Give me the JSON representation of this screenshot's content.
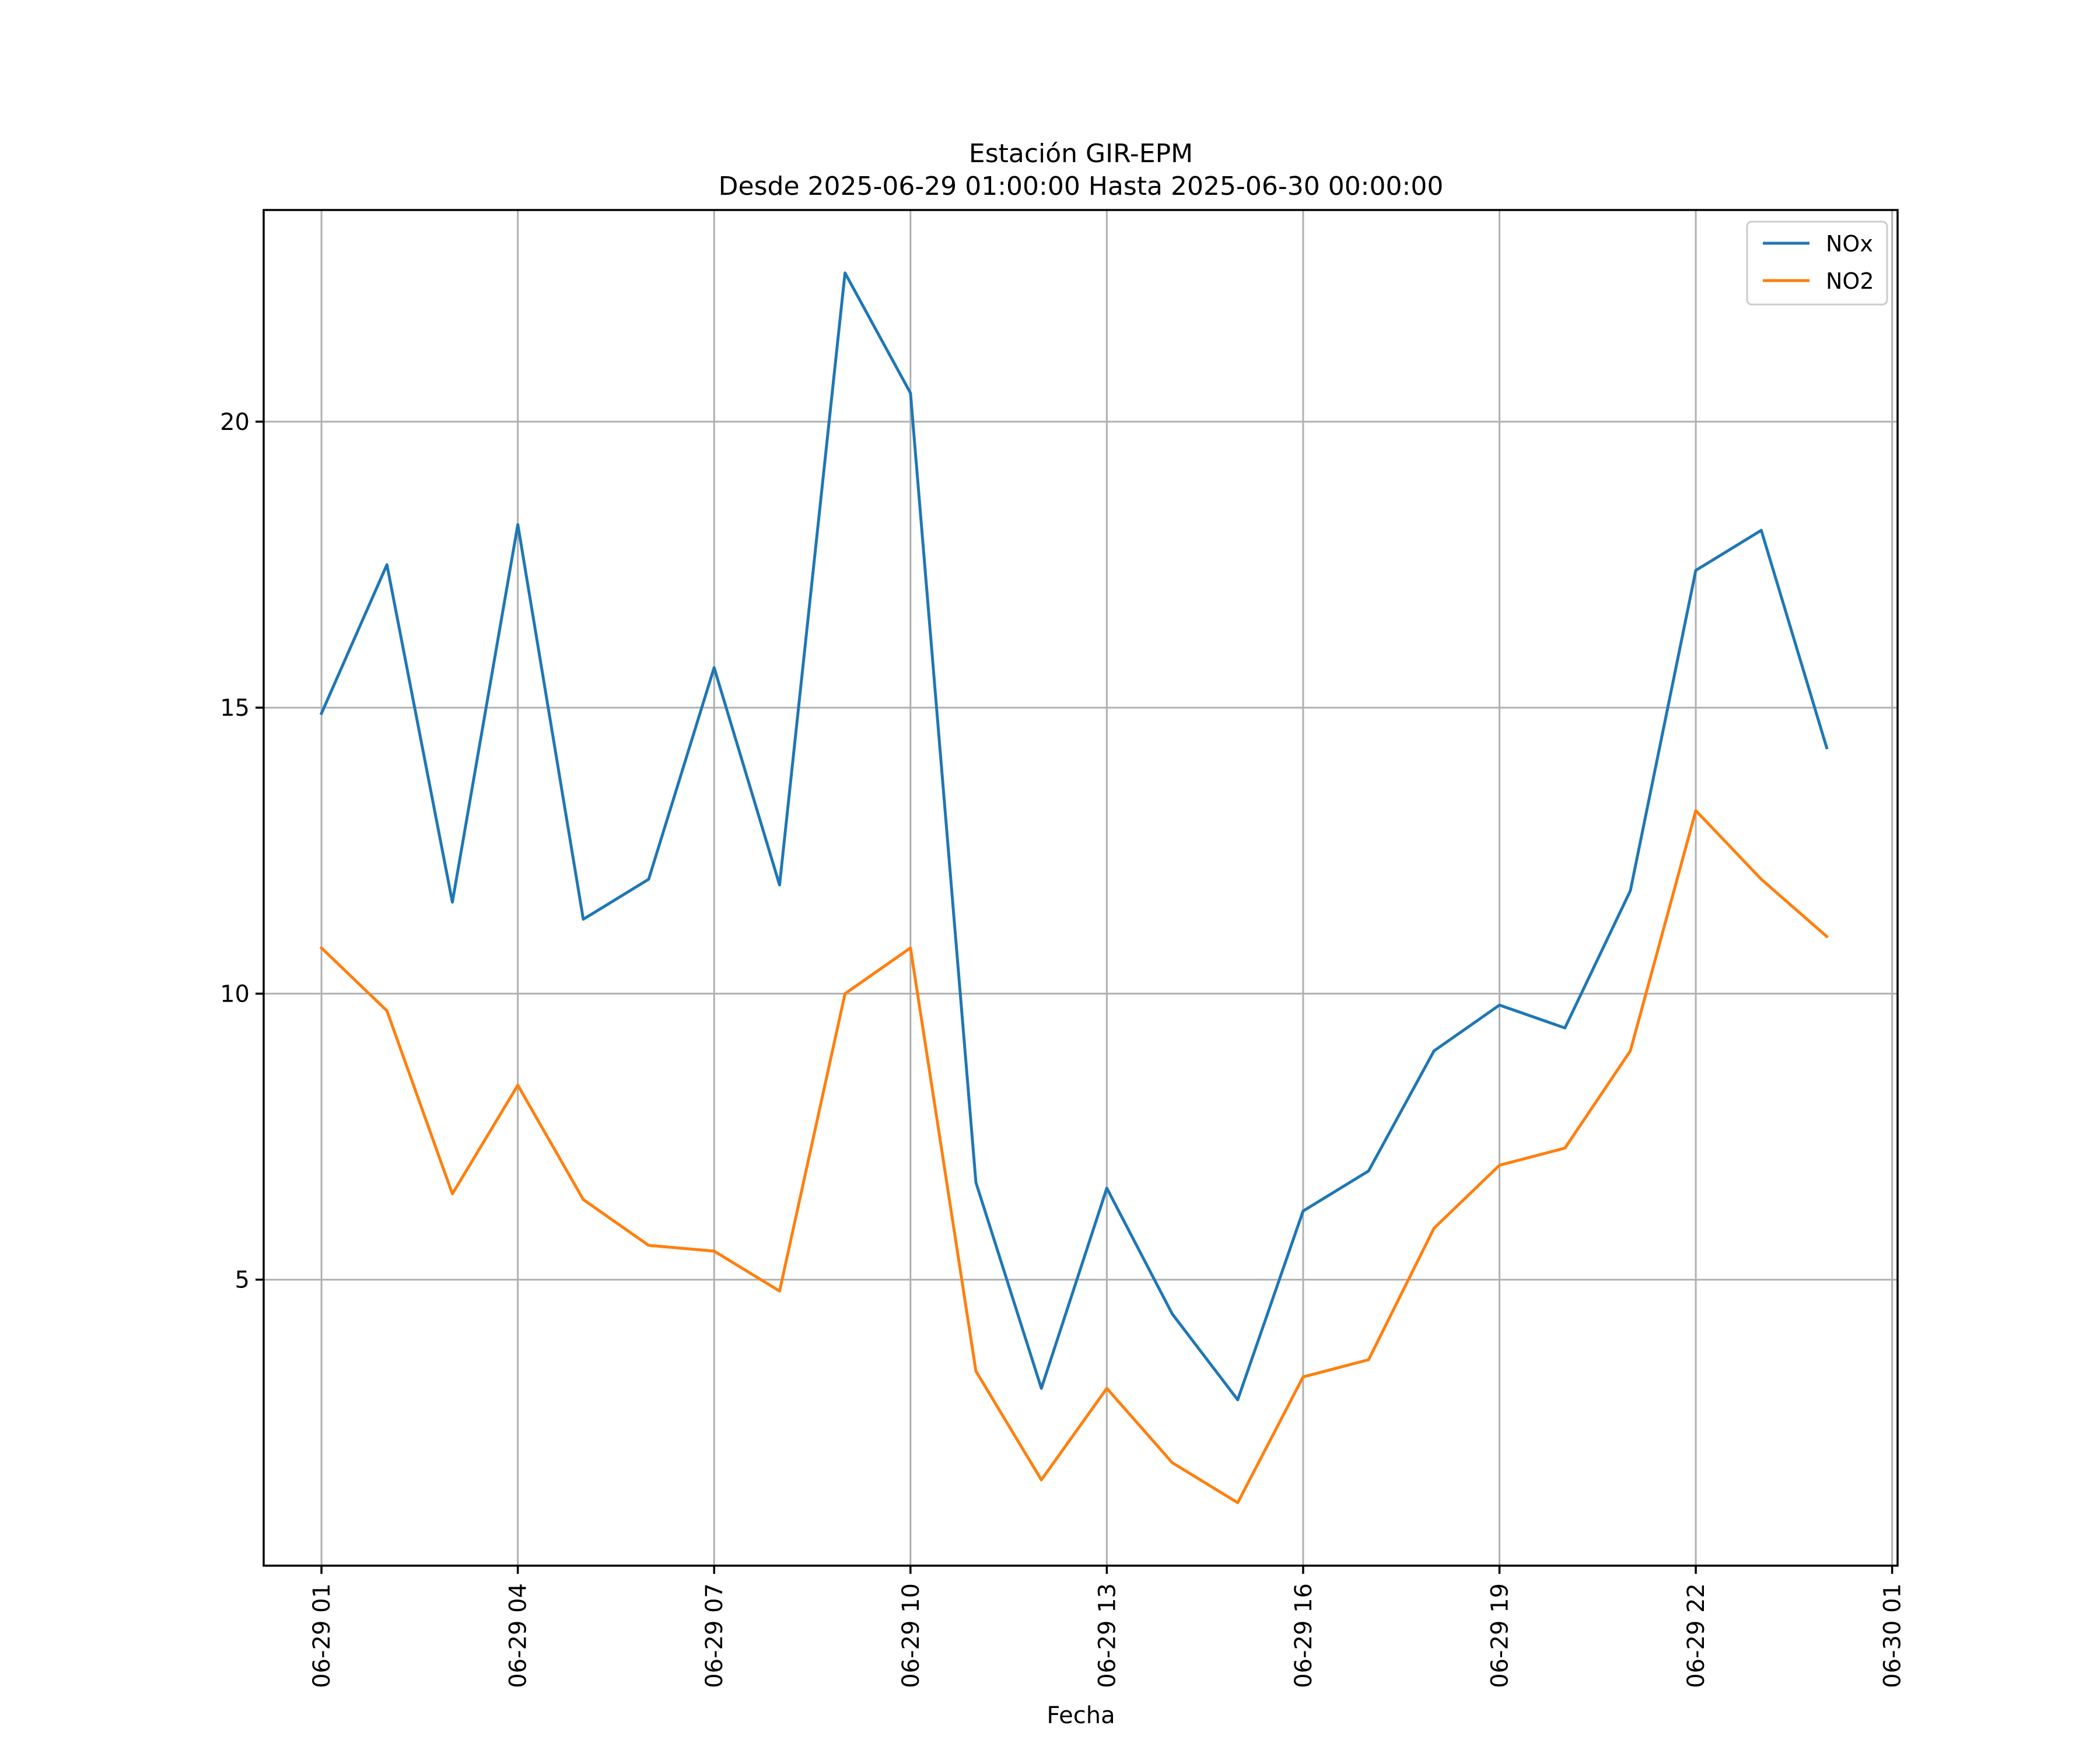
{
  "chart_data": {
    "type": "line",
    "title": "Estación GIR-EPM",
    "subtitle": "Desde 2025-06-29 01:00:00 Hasta 2025-06-30 00:00:00",
    "xlabel": "Fecha",
    "ylabel": "",
    "x": [
      "2025-06-29 01:00",
      "2025-06-29 02:00",
      "2025-06-29 03:00",
      "2025-06-29 04:00",
      "2025-06-29 05:00",
      "2025-06-29 06:00",
      "2025-06-29 07:00",
      "2025-06-29 08:00",
      "2025-06-29 09:00",
      "2025-06-29 10:00",
      "2025-06-29 11:00",
      "2025-06-29 12:00",
      "2025-06-29 13:00",
      "2025-06-29 14:00",
      "2025-06-29 15:00",
      "2025-06-29 16:00",
      "2025-06-29 17:00",
      "2025-06-29 18:00",
      "2025-06-29 19:00",
      "2025-06-29 20:00",
      "2025-06-29 21:00",
      "2025-06-29 22:00",
      "2025-06-29 23:00",
      "2025-06-30 00:00"
    ],
    "xlim": [
      "2025-06-29 00:07",
      "2025-06-30 01:05"
    ],
    "ylim": [
      0.0,
      23.7
    ],
    "x_ticks": [
      "2025-06-29 01:00",
      "2025-06-29 04:00",
      "2025-06-29 07:00",
      "2025-06-29 10:00",
      "2025-06-29 13:00",
      "2025-06-29 16:00",
      "2025-06-29 19:00",
      "2025-06-29 22:00",
      "2025-06-30 01:00"
    ],
    "x_tick_labels": [
      "06-29 01",
      "06-29 04",
      "06-29 07",
      "06-29 10",
      "06-29 13",
      "06-29 16",
      "06-29 19",
      "06-29 22",
      "06-30 01"
    ],
    "y_ticks": [
      5,
      10,
      15,
      20
    ],
    "y_tick_labels": [
      "5",
      "10",
      "15",
      "20"
    ],
    "grid": true,
    "legend_position": "top-right",
    "series": [
      {
        "name": "NOx",
        "color": "#1f77b4",
        "values": [
          14.9,
          17.5,
          11.6,
          18.2,
          11.3,
          12.0,
          15.7,
          11.9,
          22.6,
          20.5,
          6.7,
          3.1,
          6.6,
          4.4,
          2.9,
          6.2,
          6.9,
          9.0,
          9.8,
          9.4,
          11.8,
          17.4,
          18.1,
          14.3
        ]
      },
      {
        "name": "NO2",
        "color": "#ff7f0e",
        "values": [
          10.8,
          9.7,
          6.5,
          8.4,
          6.4,
          5.6,
          5.5,
          4.8,
          10.0,
          10.8,
          3.4,
          1.5,
          3.1,
          1.8,
          1.1,
          3.3,
          3.6,
          5.9,
          7.0,
          7.3,
          9.0,
          13.2,
          12.0,
          11.0
        ]
      }
    ]
  }
}
